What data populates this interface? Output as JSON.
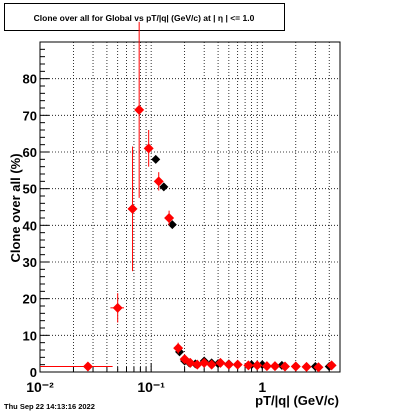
{
  "timestamp": "Thu Sep 22 14:13:16 2022",
  "chart_data": {
    "type": "scatter",
    "title": "Clone  over all for Global vs pT/|q| (GeV/c) at |  η | <= 1.0",
    "xlabel": "pT/|q| (GeV/c)",
    "ylabel": "Clone  over all (%)",
    "x_scale": "log",
    "xlim": [
      0.01,
      5.0
    ],
    "ylim": [
      0,
      90
    ],
    "grid": true,
    "x_ticks": [
      {
        "v": 0.01,
        "label": "10⁻²"
      },
      {
        "v": 0.1,
        "label": "10⁻¹"
      },
      {
        "v": 1,
        "label": "1"
      }
    ],
    "y_ticks": [
      0,
      10,
      20,
      30,
      40,
      50,
      60,
      70,
      80
    ],
    "series": [
      {
        "color": "#000000",
        "points": [
          {
            "x": 0.11,
            "y": 58.0
          },
          {
            "x": 0.13,
            "y": 50.5
          },
          {
            "x": 0.155,
            "y": 40.2
          },
          {
            "x": 0.18,
            "y": 5.5
          },
          {
            "x": 0.2,
            "y": 3.0
          },
          {
            "x": 0.22,
            "y": 2.5
          },
          {
            "x": 0.25,
            "y": 2.2
          },
          {
            "x": 0.3,
            "y": 3.0
          },
          {
            "x": 0.35,
            "y": 2.5
          },
          {
            "x": 0.4,
            "y": 2.3
          },
          {
            "x": 0.5,
            "y": 2.2
          },
          {
            "x": 0.6,
            "y": 2.0
          },
          {
            "x": 0.8,
            "y": 2.0
          },
          {
            "x": 1.0,
            "y": 2.0
          },
          {
            "x": 1.5,
            "y": 1.8
          },
          {
            "x": 2.0,
            "y": 1.6
          },
          {
            "x": 3.0,
            "y": 1.5
          },
          {
            "x": 4.0,
            "y": 1.5
          }
        ]
      },
      {
        "color": "#ff0000",
        "points": [
          {
            "x": 0.027,
            "y": 1.5,
            "xerr": [
              0.01,
              0.045
            ],
            "yerr": 0.3
          },
          {
            "x": 0.05,
            "y": 17.5,
            "xerr": [
              0.043,
              0.057
            ],
            "yerr": 4.0
          },
          {
            "x": 0.068,
            "y": 44.5,
            "yerr": 17.0
          },
          {
            "x": 0.078,
            "y": 71.5,
            "yerr": 24.0
          },
          {
            "x": 0.095,
            "y": 61.0,
            "yerr": 5.0
          },
          {
            "x": 0.117,
            "y": 52.0,
            "yerr": 2.5
          },
          {
            "x": 0.145,
            "y": 42.0,
            "yerr": 2.0
          },
          {
            "x": 0.175,
            "y": 6.5,
            "yerr": 1.5
          },
          {
            "x": 0.2,
            "y": 3.5,
            "yerr": 0.8
          },
          {
            "x": 0.225,
            "y": 2.5,
            "yerr": 0.5
          },
          {
            "x": 0.26,
            "y": 2.0,
            "yerr": 0.4
          },
          {
            "x": 0.3,
            "y": 2.5,
            "yerr": 0.4
          },
          {
            "x": 0.35,
            "y": 2.0,
            "yerr": 0.4
          },
          {
            "x": 0.42,
            "y": 2.5,
            "yerr": 0.4
          },
          {
            "x": 0.5,
            "y": 2.0,
            "yerr": 0.4
          },
          {
            "x": 0.6,
            "y": 2.0,
            "yerr": 0.4
          },
          {
            "x": 0.75,
            "y": 1.8,
            "yerr": 0.4
          },
          {
            "x": 0.9,
            "y": 1.8,
            "yerr": 0.4
          },
          {
            "x": 1.1,
            "y": 1.6,
            "yerr": 0.4
          },
          {
            "x": 1.3,
            "y": 1.6,
            "yerr": 0.4
          },
          {
            "x": 1.6,
            "y": 1.5,
            "yerr": 0.4
          },
          {
            "x": 2.0,
            "y": 1.5,
            "yerr": 0.4
          },
          {
            "x": 2.5,
            "y": 1.4,
            "yerr": 0.4
          },
          {
            "x": 3.2,
            "y": 1.3,
            "yerr": 0.4
          },
          {
            "x": 4.2,
            "y": 1.8,
            "yerr": 0.5
          }
        ]
      }
    ]
  }
}
